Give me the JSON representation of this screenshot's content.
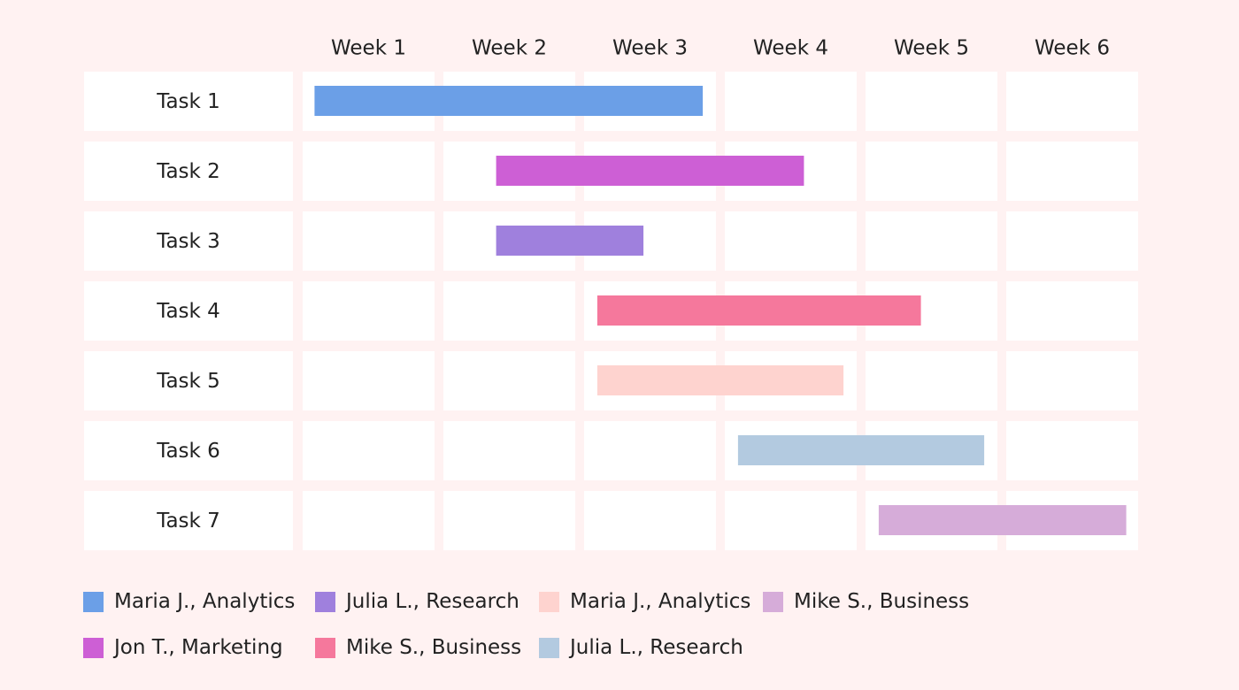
{
  "chart_data": {
    "type": "gantt",
    "columns": [
      "Week 1",
      "Week 2",
      "Week 3",
      "Week 4",
      "Week 5",
      "Week 6"
    ],
    "tasks": [
      {
        "label": "Task 1",
        "start": 0.09,
        "end": 2.9,
        "color": "#6b9fe7",
        "owner": "Maria J., Analytics"
      },
      {
        "label": "Task 2",
        "start": 1.4,
        "end": 3.6,
        "color": "#cd5fd5",
        "owner": "Jon T., Marketing"
      },
      {
        "label": "Task 3",
        "start": 1.4,
        "end": 2.45,
        "color": "#9f80dd",
        "owner": "Julia L., Research"
      },
      {
        "label": "Task 4",
        "start": 2.1,
        "end": 4.42,
        "color": "#f5789c",
        "owner": "Mike S., Business"
      },
      {
        "label": "Task 5",
        "start": 2.1,
        "end": 3.9,
        "color": "#fed3cf",
        "owner": "Maria J., Analytics"
      },
      {
        "label": "Task 6",
        "start": 3.1,
        "end": 4.9,
        "color": "#b3cae0",
        "owner": "Julia L., Research"
      },
      {
        "label": "Task 7",
        "start": 4.1,
        "end": 5.91,
        "color": "#d6acd9",
        "owner": "Mike S., Business"
      }
    ]
  },
  "legend": [
    {
      "label": "Maria J., Analytics",
      "color": "#6b9fe7"
    },
    {
      "label": "Jon T., Marketing",
      "color": "#cd5fd5"
    },
    {
      "label": "Julia L., Research",
      "color": "#9f80dd"
    },
    {
      "label": "Mike S., Business",
      "color": "#f5789c"
    },
    {
      "label": "Maria J., Analytics",
      "color": "#fed3cf"
    },
    {
      "label": "Julia L., Research",
      "color": "#b3cae0"
    },
    {
      "label": "Mike S., Business",
      "color": "#d6acd9"
    }
  ]
}
